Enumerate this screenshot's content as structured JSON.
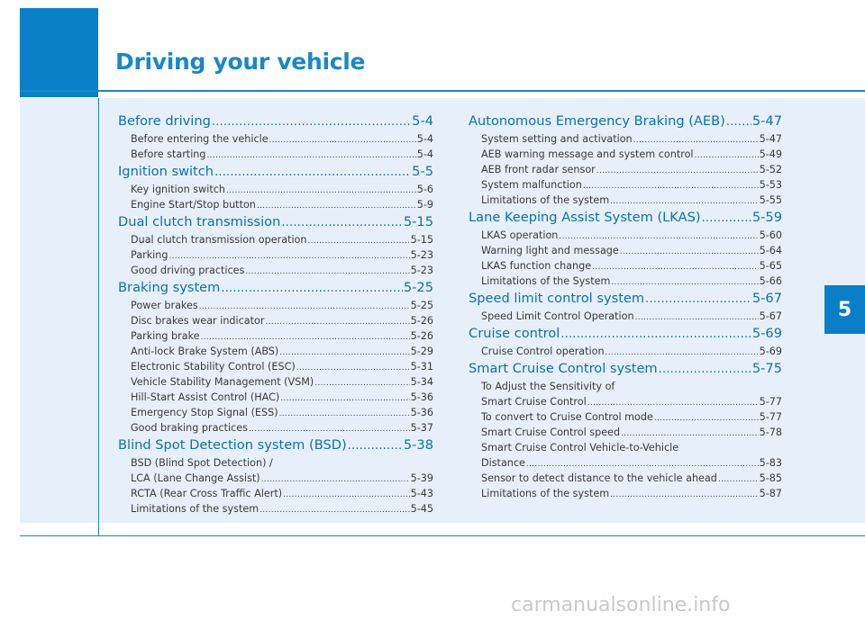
{
  "header": {
    "title": "Driving your vehicle"
  },
  "chapter_tab": "5",
  "watermark": "carmanualsonline.info",
  "left_column": [
    {
      "type": "section",
      "title": "Before driving",
      "page": "5-4"
    },
    {
      "type": "item",
      "title": "Before entering the vehicle",
      "page": "5-4"
    },
    {
      "type": "item",
      "title": "Before starting",
      "page": "5-4"
    },
    {
      "type": "section",
      "title": "Ignition switch",
      "page": "5-5"
    },
    {
      "type": "item",
      "title": "Key ignition switch",
      "page": "5-6"
    },
    {
      "type": "item",
      "title": "Engine Start/Stop button",
      "page": "5-9"
    },
    {
      "type": "section",
      "title": "Dual clutch transmission",
      "page": "5-15"
    },
    {
      "type": "item",
      "title": "Dual clutch transmission operation",
      "page": "5-15"
    },
    {
      "type": "item",
      "title": "Parking",
      "page": "5-23"
    },
    {
      "type": "item",
      "title": "Good driving practices",
      "page": "5-23"
    },
    {
      "type": "section",
      "title": "Braking system",
      "page": "5-25"
    },
    {
      "type": "item",
      "title": "Power brakes",
      "page": "5-25"
    },
    {
      "type": "item",
      "title": "Disc brakes wear indicator",
      "page": "5-26"
    },
    {
      "type": "item",
      "title": "Parking brake",
      "page": "5-26"
    },
    {
      "type": "item",
      "title": "Anti-lock Brake System (ABS)",
      "page": "5-29"
    },
    {
      "type": "item",
      "title": "Electronic Stability Control (ESC)",
      "page": "5-31"
    },
    {
      "type": "item",
      "title": "Vehicle Stability Management (VSM)",
      "page": "5-34"
    },
    {
      "type": "item",
      "title": "Hill-Start Assist Control (HAC)",
      "page": "5-36"
    },
    {
      "type": "item",
      "title": "Emergency Stop Signal (ESS)",
      "page": "5-36"
    },
    {
      "type": "item",
      "title": "Good braking practices",
      "page": "5-37"
    },
    {
      "type": "section",
      "title": "Blind Spot Detection system (BSD)",
      "page": "5-38"
    },
    {
      "type": "cont",
      "title": "BSD (Blind Spot Detection) /",
      "page": ""
    },
    {
      "type": "item",
      "title": "LCA (Lane Change Assist)",
      "page": "5-39"
    },
    {
      "type": "item",
      "title": "RCTA (Rear Cross Traffic Alert)",
      "page": "5-43"
    },
    {
      "type": "item",
      "title": "Limitations of the system",
      "page": "5-45"
    }
  ],
  "right_column": [
    {
      "type": "section",
      "title": "Autonomous Emergency Braking (AEB)",
      "page": "5-47"
    },
    {
      "type": "item",
      "title": "System setting and activation",
      "page": "5-47"
    },
    {
      "type": "item",
      "title": "AEB warning message and system control",
      "page": "5-49"
    },
    {
      "type": "item",
      "title": "AEB front radar sensor",
      "page": "5-52"
    },
    {
      "type": "item",
      "title": "System malfunction",
      "page": "5-53"
    },
    {
      "type": "item",
      "title": "Limitations of the system",
      "page": "5-55"
    },
    {
      "type": "section",
      "title": "Lane Keeping Assist System (LKAS)",
      "page": "5-59"
    },
    {
      "type": "item",
      "title": "LKAS operation",
      "page": "5-60"
    },
    {
      "type": "item",
      "title": "Warning light and message",
      "page": "5-64"
    },
    {
      "type": "item",
      "title": "LKAS function change",
      "page": "5-65"
    },
    {
      "type": "item",
      "title": "Limitations of the System",
      "page": "5-66"
    },
    {
      "type": "section",
      "title": "Speed limit control system",
      "page": "5-67"
    },
    {
      "type": "item",
      "title": "Speed Limit Control Operation",
      "page": "5-67"
    },
    {
      "type": "section",
      "title": "Cruise control",
      "page": "5-69"
    },
    {
      "type": "item",
      "title": "Cruise Control operation",
      "page": "5-69"
    },
    {
      "type": "section",
      "title": "Smart Cruise Control system",
      "page": "5-75"
    },
    {
      "type": "cont",
      "title": "To Adjust the Sensitivity of",
      "page": ""
    },
    {
      "type": "item",
      "title": "Smart Cruise Control",
      "page": "5-77"
    },
    {
      "type": "item",
      "title": "To convert to Cruise Control mode",
      "page": "5-77"
    },
    {
      "type": "item",
      "title": "Smart Cruise Control speed",
      "page": "5-78"
    },
    {
      "type": "cont",
      "title": "Smart Cruise Control Vehicle-to-Vehicle",
      "page": ""
    },
    {
      "type": "item",
      "title": "Distance",
      "page": "5-83"
    },
    {
      "type": "item",
      "title": "Sensor to detect distance to the vehicle ahead",
      "page": "5-85"
    },
    {
      "type": "item",
      "title": "Limitations of the system",
      "page": "5-87"
    }
  ]
}
